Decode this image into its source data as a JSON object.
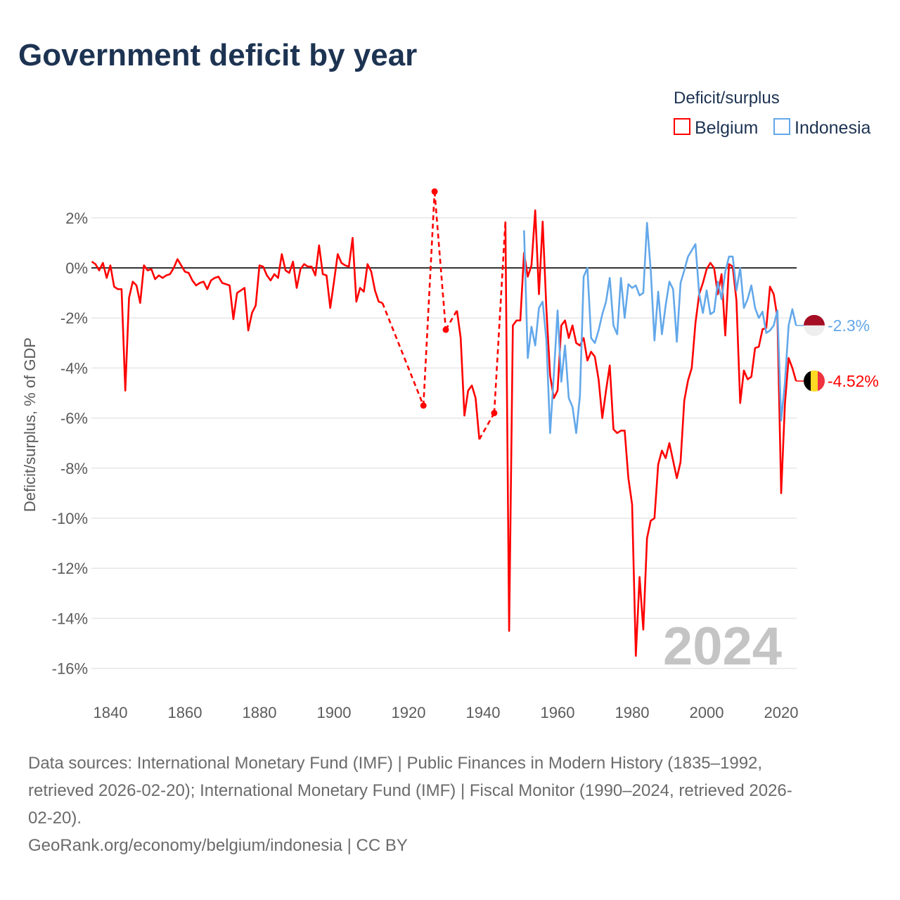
{
  "title": "Government deficit by year",
  "legend": {
    "title": "Deficit/surplus",
    "items": [
      {
        "name": "Belgium",
        "color": "#ff0000"
      },
      {
        "name": "Indonesia",
        "color": "#63a8ea"
      }
    ]
  },
  "footer": {
    "line1": "Data sources: International Monetary Fund (IMF) | Public Finances in Modern History (1835–1992,",
    "line2": "retrieved 2026-02-20); International Monetary Fund (IMF) | Fiscal Monitor (1990–2024, retrieved 2026-",
    "line3": "02-20).",
    "line4": "GeoRank.org/economy/belgium/indonesia | CC BY"
  },
  "chart_data": {
    "type": "line",
    "title": "Government deficit by year",
    "xlabel": "",
    "ylabel": "Deficit/surplus, % of GDP",
    "xlim": [
      1835,
      2024
    ],
    "ylim": [
      -16.5,
      3.2
    ],
    "xticks": [
      1840,
      1860,
      1880,
      1900,
      1920,
      1940,
      1960,
      1980,
      2000,
      2020
    ],
    "yticks": [
      2,
      0,
      -2,
      -4,
      -6,
      -8,
      -10,
      -12,
      -14,
      -16
    ],
    "ytick_labels": [
      "2%",
      "0%",
      "-2%",
      "-4%",
      "-6%",
      "-8%",
      "-10%",
      "-12%",
      "-14%",
      "-16%"
    ],
    "xtick_labels": [
      "1840",
      "1860",
      "1880",
      "1900",
      "1920",
      "1940",
      "1960",
      "1980",
      "2000",
      "2020"
    ],
    "grid": true,
    "legend_position": "top-right",
    "year_watermark": "2024",
    "series": [
      {
        "name": "Belgium",
        "color": "#ff0000",
        "end_label": "-4.52%",
        "flag": "belgium",
        "points": [
          [
            1835,
            0.25
          ],
          [
            1836,
            0.15
          ],
          [
            1837,
            -0.1
          ],
          [
            1838,
            0.2
          ],
          [
            1839,
            -0.4
          ],
          [
            1840,
            0.1
          ],
          [
            1841,
            -0.75
          ],
          [
            1842,
            -0.85
          ],
          [
            1843,
            -0.85
          ],
          [
            1844,
            -4.9
          ],
          [
            1845,
            -1.2
          ],
          [
            1846,
            -0.55
          ],
          [
            1847,
            -0.7
          ],
          [
            1848,
            -1.4
          ],
          [
            1849,
            0.1
          ],
          [
            1850,
            -0.1
          ],
          [
            1851,
            -0.05
          ],
          [
            1852,
            -0.45
          ],
          [
            1853,
            -0.3
          ],
          [
            1854,
            -0.4
          ],
          [
            1855,
            -0.3
          ],
          [
            1856,
            -0.25
          ],
          [
            1857,
            0
          ],
          [
            1858,
            0.35
          ],
          [
            1859,
            0.1
          ],
          [
            1860,
            -0.15
          ],
          [
            1861,
            -0.2
          ],
          [
            1862,
            -0.5
          ],
          [
            1863,
            -0.7
          ],
          [
            1864,
            -0.6
          ],
          [
            1865,
            -0.55
          ],
          [
            1866,
            -0.85
          ],
          [
            1867,
            -0.5
          ],
          [
            1868,
            -0.4
          ],
          [
            1869,
            -0.35
          ],
          [
            1870,
            -0.6
          ],
          [
            1871,
            -0.65
          ],
          [
            1872,
            -0.7
          ],
          [
            1873,
            -2.05
          ],
          [
            1874,
            -1.0
          ],
          [
            1875,
            -0.9
          ],
          [
            1876,
            -0.8
          ],
          [
            1877,
            -2.5
          ],
          [
            1878,
            -1.8
          ],
          [
            1879,
            -1.5
          ],
          [
            1880,
            0.1
          ],
          [
            1881,
            0.05
          ],
          [
            1882,
            -0.3
          ],
          [
            1883,
            -0.5
          ],
          [
            1884,
            -0.25
          ],
          [
            1885,
            -0.4
          ],
          [
            1886,
            0.55
          ],
          [
            1887,
            -0.1
          ],
          [
            1888,
            -0.2
          ],
          [
            1889,
            0.25
          ],
          [
            1890,
            -0.8
          ],
          [
            1891,
            -0.05
          ],
          [
            1892,
            0.15
          ],
          [
            1893,
            0.05
          ],
          [
            1894,
            0.05
          ],
          [
            1895,
            -0.3
          ],
          [
            1896,
            0.9
          ],
          [
            1897,
            -0.25
          ],
          [
            1898,
            -0.3
          ],
          [
            1899,
            -1.6
          ],
          [
            1900,
            -0.55
          ],
          [
            1901,
            0.55
          ],
          [
            1902,
            0.2
          ],
          [
            1903,
            0.1
          ],
          [
            1904,
            0.05
          ],
          [
            1905,
            1.2
          ],
          [
            1906,
            -1.35
          ],
          [
            1907,
            -0.8
          ],
          [
            1908,
            -0.95
          ],
          [
            1909,
            0.15
          ],
          [
            1910,
            -0.15
          ],
          [
            1911,
            -0.9
          ],
          [
            1912,
            -1.35
          ],
          [
            1913,
            -1.4
          ],
          [
            1924,
            -5.5
          ],
          [
            1927,
            3.05
          ],
          [
            1930,
            -2.47
          ],
          [
            1933,
            -1.7
          ],
          [
            1934,
            -2.8
          ],
          [
            1935,
            -5.9
          ],
          [
            1936,
            -4.9
          ],
          [
            1937,
            -4.7
          ],
          [
            1938,
            -5.2
          ],
          [
            1939,
            -6.85
          ],
          [
            1943,
            -5.8
          ],
          [
            1946,
            1.85
          ],
          [
            1947,
            -14.5
          ],
          [
            1948,
            -2.3
          ],
          [
            1949,
            -2.1
          ],
          [
            1950,
            -2.1
          ],
          [
            1951,
            0.6
          ],
          [
            1952,
            -0.35
          ],
          [
            1953,
            0.1
          ],
          [
            1954,
            2.3
          ],
          [
            1955,
            -1.05
          ],
          [
            1956,
            1.85
          ],
          [
            1957,
            -1.65
          ],
          [
            1958,
            -4.3
          ],
          [
            1959,
            -5.2
          ],
          [
            1960,
            -4.9
          ],
          [
            1961,
            -2.3
          ],
          [
            1962,
            -2.1
          ],
          [
            1963,
            -2.8
          ],
          [
            1964,
            -2.3
          ],
          [
            1965,
            -3.0
          ],
          [
            1966,
            -3.1
          ],
          [
            1967,
            -2.8
          ],
          [
            1968,
            -3.7
          ],
          [
            1969,
            -3.35
          ],
          [
            1970,
            -3.55
          ],
          [
            1971,
            -4.45
          ],
          [
            1972,
            -6.0
          ],
          [
            1973,
            -4.9
          ],
          [
            1974,
            -3.9
          ],
          [
            1975,
            -6.45
          ],
          [
            1976,
            -6.6
          ],
          [
            1977,
            -6.5
          ],
          [
            1978,
            -6.5
          ],
          [
            1979,
            -8.4
          ],
          [
            1980,
            -9.45
          ],
          [
            1981,
            -15.5
          ],
          [
            1982,
            -12.35
          ],
          [
            1983,
            -14.45
          ],
          [
            1984,
            -10.8
          ],
          [
            1985,
            -10.1
          ],
          [
            1986,
            -10.0
          ],
          [
            1987,
            -7.85
          ],
          [
            1988,
            -7.3
          ],
          [
            1989,
            -7.6
          ],
          [
            1990,
            -7.0
          ],
          [
            1991,
            -7.7
          ],
          [
            1992,
            -8.4
          ],
          [
            1993,
            -7.75
          ],
          [
            1994,
            -5.3
          ],
          [
            1995,
            -4.5
          ],
          [
            1996,
            -4.0
          ],
          [
            1997,
            -2.2
          ],
          [
            1998,
            -1.05
          ],
          [
            1999,
            -0.6
          ],
          [
            2000,
            -0.05
          ],
          [
            2001,
            0.2
          ],
          [
            2002,
            0.0
          ],
          [
            2003,
            -1.05
          ],
          [
            2004,
            -0.25
          ],
          [
            2005,
            -2.7
          ],
          [
            2006,
            0.15
          ],
          [
            2007,
            0.05
          ],
          [
            2008,
            -1.3
          ],
          [
            2009,
            -5.4
          ],
          [
            2010,
            -4.1
          ],
          [
            2011,
            -4.45
          ],
          [
            2012,
            -4.35
          ],
          [
            2013,
            -3.2
          ],
          [
            2014,
            -3.15
          ],
          [
            2015,
            -2.45
          ],
          [
            2016,
            -2.4
          ],
          [
            2017,
            -0.75
          ],
          [
            2018,
            -1.05
          ],
          [
            2019,
            -2.0
          ],
          [
            2020,
            -9.0
          ],
          [
            2021,
            -5.45
          ],
          [
            2022,
            -3.6
          ],
          [
            2023,
            -4.0
          ],
          [
            2024,
            -4.52
          ]
        ]
      },
      {
        "name": "Indonesia",
        "color": "#63a8ea",
        "end_label": "-2.3%",
        "flag": "indonesia",
        "points": [
          [
            1951,
            1.5
          ],
          [
            1952,
            -3.6
          ],
          [
            1953,
            -2.35
          ],
          [
            1954,
            -3.1
          ],
          [
            1955,
            -1.6
          ],
          [
            1956,
            -1.35
          ],
          [
            1957,
            -2.9
          ],
          [
            1958,
            -6.6
          ],
          [
            1959,
            -4.25
          ],
          [
            1960,
            -1.7
          ],
          [
            1961,
            -4.55
          ],
          [
            1962,
            -3.1
          ],
          [
            1963,
            -5.2
          ],
          [
            1964,
            -5.55
          ],
          [
            1965,
            -6.6
          ],
          [
            1966,
            -5.1
          ],
          [
            1967,
            -0.35
          ],
          [
            1968,
            0
          ],
          [
            1969,
            -2.8
          ],
          [
            1970,
            -3.0
          ],
          [
            1971,
            -2.5
          ],
          [
            1972,
            -1.85
          ],
          [
            1973,
            -1.35
          ],
          [
            1974,
            -0.4
          ],
          [
            1975,
            -2.3
          ],
          [
            1976,
            -2.65
          ],
          [
            1977,
            -0.4
          ],
          [
            1978,
            -2.0
          ],
          [
            1979,
            -0.65
          ],
          [
            1980,
            -0.8
          ],
          [
            1981,
            -0.7
          ],
          [
            1982,
            -1.1
          ],
          [
            1983,
            -1.0
          ],
          [
            1984,
            1.8
          ],
          [
            1985,
            -0.1
          ],
          [
            1986,
            -2.9
          ],
          [
            1987,
            -0.95
          ],
          [
            1988,
            -2.65
          ],
          [
            1989,
            -1.5
          ],
          [
            1990,
            -0.55
          ],
          [
            1991,
            -0.85
          ],
          [
            1992,
            -2.95
          ],
          [
            1993,
            -0.6
          ],
          [
            1994,
            -0.1
          ],
          [
            1995,
            0.45
          ],
          [
            1996,
            0.7
          ],
          [
            1997,
            0.95
          ],
          [
            1998,
            -1.05
          ],
          [
            1999,
            -1.8
          ],
          [
            2000,
            -0.9
          ],
          [
            2001,
            -1.85
          ],
          [
            2002,
            -1.75
          ],
          [
            2003,
            -0.55
          ],
          [
            2004,
            -1.25
          ],
          [
            2005,
            -0.15
          ],
          [
            2006,
            0.45
          ],
          [
            2007,
            0.45
          ],
          [
            2008,
            -0.9
          ],
          [
            2009,
            0.0
          ],
          [
            2010,
            -1.6
          ],
          [
            2011,
            -1.25
          ],
          [
            2012,
            -0.7
          ],
          [
            2013,
            -1.6
          ],
          [
            2014,
            -2.0
          ],
          [
            2015,
            -1.75
          ],
          [
            2016,
            -2.6
          ],
          [
            2017,
            -2.5
          ],
          [
            2018,
            -2.3
          ],
          [
            2019,
            -1.7
          ],
          [
            2020,
            -6.1
          ],
          [
            2021,
            -4.6
          ],
          [
            2022,
            -2.3
          ],
          [
            2023,
            -1.65
          ],
          [
            2024,
            -2.3
          ]
        ]
      }
    ]
  }
}
